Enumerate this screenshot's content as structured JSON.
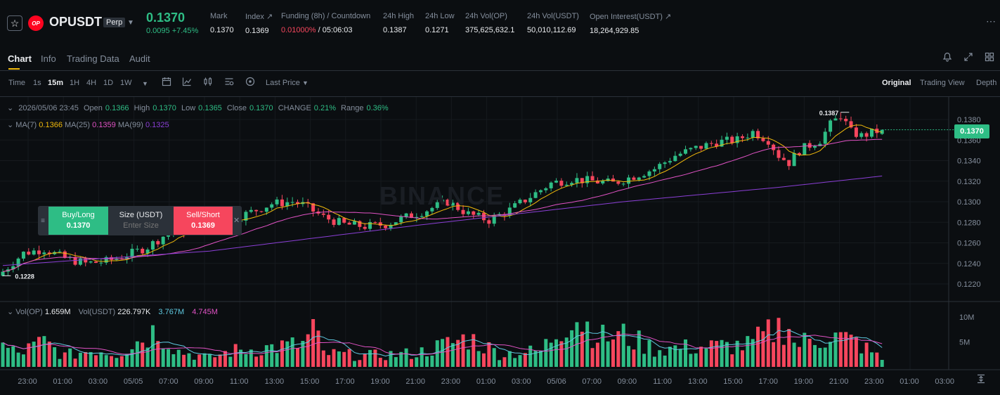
{
  "header": {
    "symbol": "OPUSDT",
    "coin_badge": "OP",
    "contract_type": "Perp",
    "last_price": "0.1370",
    "change": "0.0095 +7.45%",
    "stats": [
      {
        "label": "Mark",
        "value": "0.1370"
      },
      {
        "label": "Index ↗",
        "value": "0.1369"
      },
      {
        "label": "Funding (8h) / Countdown",
        "value_funding": "0.01000%",
        "value_countdown": "/ 05:06:03"
      },
      {
        "label": "24h High",
        "value": "0.1387"
      },
      {
        "label": "24h Low",
        "value": "0.1271"
      },
      {
        "label": "24h Vol(OP)",
        "value": "375,625,632.1"
      },
      {
        "label": "24h Vol(USDT)",
        "value": "50,010,112.69"
      },
      {
        "label": "Open Interest(USDT) ↗",
        "value": "18,264,929.85"
      }
    ]
  },
  "tabs": [
    {
      "label": "Chart",
      "active": true
    },
    {
      "label": "Info"
    },
    {
      "label": "Trading Data"
    },
    {
      "label": "Audit"
    }
  ],
  "toolbar": {
    "time_label": "Time",
    "intervals": [
      "1s",
      "15m",
      "1H",
      "4H",
      "1D",
      "1W"
    ],
    "active_interval": "15m",
    "price_type": "Last Price",
    "views": [
      "Original",
      "Trading View",
      "Depth"
    ],
    "active_view": "Original"
  },
  "ohlc": {
    "date": "2026/05/06 23:45",
    "open_label": "Open",
    "open": "0.1366",
    "high_label": "High",
    "high": "0.1370",
    "low_label": "Low",
    "low": "0.1365",
    "close_label": "Close",
    "close": "0.1370",
    "change_label": "CHANGE",
    "change": "0.21%",
    "range_label": "Range",
    "range": "0.36%"
  },
  "ma": {
    "ma7_label": "MA(7)",
    "ma7": "0.1366",
    "ma25_label": "MA(25)",
    "ma25": "0.1359",
    "ma99_label": "MA(99)",
    "ma99": "0.1325"
  },
  "volume_legend": {
    "vol_op_label": "Vol(OP)",
    "vol_op": "1.659M",
    "vol_usdt_label": "Vol(USDT)",
    "vol_usdt": "226.797K",
    "ma1": "3.767M",
    "ma2": "4.745M"
  },
  "order_panel": {
    "buy_label": "Buy/Long",
    "buy_price": "0.1370",
    "size_label": "Size (USDT)",
    "size_placeholder": "Enter Size",
    "sell_label": "Sell/Short",
    "sell_price": "0.1369"
  },
  "watermark": "BINANCE",
  "colors": {
    "up": "#2ebd85",
    "down": "#f6465d",
    "ma7": "#f0b90b",
    "ma25": "#e052c4",
    "ma99": "#8b3fd6",
    "vol_ma1": "#5fc8e0",
    "vol_ma2": "#e052c4",
    "accent": "#f0b90b"
  },
  "chart_data": {
    "type": "candlestick",
    "interval": "15m",
    "price_axis": [
      "0.1380",
      "0.1360",
      "0.1340",
      "0.1320",
      "0.1300",
      "0.1280",
      "0.1260",
      "0.1240",
      "0.1220"
    ],
    "current_price_tag": "0.1370",
    "high_marker": "0.1387",
    "low_marker": "0.1228",
    "volume_axis": [
      "10M",
      "5M"
    ],
    "time_axis": [
      "23:00",
      "01:00",
      "03:00",
      "05/05",
      "07:00",
      "09:00",
      "11:00",
      "13:00",
      "15:00",
      "17:00",
      "19:00",
      "21:00",
      "23:00",
      "01:00",
      "03:00",
      "05/06",
      "07:00",
      "09:00",
      "11:00",
      "13:00",
      "15:00",
      "17:00",
      "19:00",
      "21:00",
      "23:00",
      "01:00",
      "03:00"
    ],
    "close_path": [
      [
        0,
        0.1232
      ],
      [
        4,
        0.125
      ],
      [
        8,
        0.1254
      ],
      [
        12,
        0.1245
      ],
      [
        16,
        0.124
      ],
      [
        20,
        0.1242
      ],
      [
        24,
        0.1248
      ],
      [
        28,
        0.1256
      ],
      [
        32,
        0.127
      ],
      [
        36,
        0.1272
      ],
      [
        40,
        0.1285
      ],
      [
        44,
        0.1282
      ],
      [
        48,
        0.129
      ],
      [
        52,
        0.1298
      ],
      [
        56,
        0.13
      ],
      [
        58,
        0.1297
      ],
      [
        62,
        0.1285
      ],
      [
        66,
        0.1278
      ],
      [
        70,
        0.1276
      ],
      [
        74,
        0.1278
      ],
      [
        78,
        0.1285
      ],
      [
        82,
        0.1292
      ],
      [
        86,
        0.13
      ],
      [
        90,
        0.1288
      ],
      [
        94,
        0.1282
      ],
      [
        98,
        0.1292
      ],
      [
        102,
        0.1305
      ],
      [
        106,
        0.1318
      ],
      [
        110,
        0.1322
      ],
      [
        114,
        0.132
      ],
      [
        118,
        0.1318
      ],
      [
        122,
        0.1325
      ],
      [
        126,
        0.1332
      ],
      [
        130,
        0.1345
      ],
      [
        134,
        0.1352
      ],
      [
        138,
        0.1358
      ],
      [
        142,
        0.136
      ],
      [
        145,
        0.1368
      ],
      [
        148,
        0.136
      ],
      [
        150,
        0.1345
      ],
      [
        152,
        0.1338
      ],
      [
        154,
        0.135
      ],
      [
        158,
        0.136
      ],
      [
        160,
        0.1375
      ],
      [
        162,
        0.1384
      ],
      [
        164,
        0.1368
      ],
      [
        166,
        0.1364
      ],
      [
        168,
        0.1367
      ],
      [
        170,
        0.137
      ]
    ],
    "ma99_path": [
      [
        0,
        0.1238
      ],
      [
        40,
        0.1252
      ],
      [
        80,
        0.1277
      ],
      [
        120,
        0.13
      ],
      [
        150,
        0.1314
      ],
      [
        170,
        0.1325
      ]
    ],
    "volume_path": [
      [
        0,
        4.5
      ],
      [
        3,
        3.0
      ],
      [
        8,
        5.5
      ],
      [
        12,
        2.5
      ],
      [
        18,
        4.0
      ],
      [
        22,
        3.0
      ],
      [
        30,
        8.5
      ],
      [
        34,
        3.5
      ],
      [
        40,
        2.0
      ],
      [
        44,
        3.5
      ],
      [
        58,
        5.0
      ],
      [
        60,
        8.5
      ],
      [
        62,
        3.0
      ],
      [
        70,
        2.5
      ],
      [
        80,
        3.0
      ],
      [
        90,
        6.5
      ],
      [
        96,
        3.0
      ],
      [
        104,
        3.5
      ],
      [
        110,
        12.0
      ],
      [
        116,
        6.5
      ],
      [
        120,
        7.0
      ],
      [
        126,
        4.0
      ],
      [
        136,
        4.5
      ],
      [
        144,
        4.8
      ],
      [
        152,
        10.0
      ],
      [
        153,
        5.0
      ],
      [
        160,
        7.0
      ],
      [
        165,
        5.5
      ],
      [
        170,
        1.7
      ]
    ]
  }
}
